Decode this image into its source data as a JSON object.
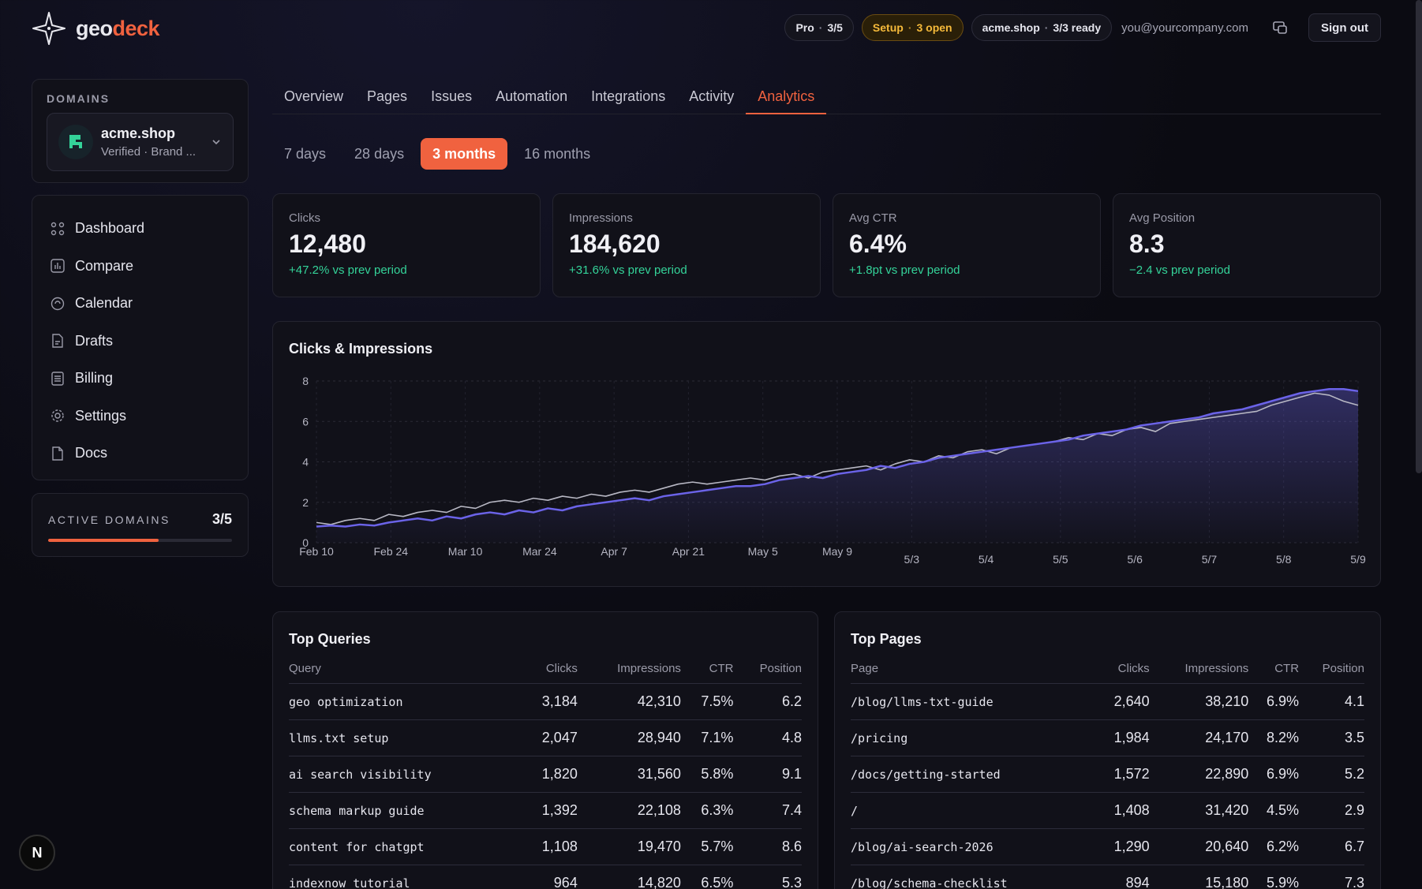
{
  "header": {
    "logo_a": "geo",
    "logo_b": "deck",
    "plan_name": "Pro",
    "plan_usage": "3/5",
    "setup_label": "Setup",
    "setup_status": "3 open",
    "domain_label": "acme.shop",
    "domain_status": "3/3 ready",
    "email": "you@yourcompany.com",
    "signout": "Sign out"
  },
  "sidebar": {
    "domains_label": "DOMAINS",
    "domain_name": "acme.shop",
    "domain_sub": "Verified · Brand ...",
    "nav": [
      {
        "label": "Dashboard",
        "icon": "dashboard-icon"
      },
      {
        "label": "Compare",
        "icon": "compare-icon"
      },
      {
        "label": "Calendar",
        "icon": "calendar-icon"
      },
      {
        "label": "Drafts",
        "icon": "drafts-icon"
      },
      {
        "label": "Billing",
        "icon": "billing-icon"
      },
      {
        "label": "Settings",
        "icon": "settings-icon"
      },
      {
        "label": "Docs",
        "icon": "docs-icon"
      }
    ],
    "active_domains_label": "ACTIVE DOMAINS",
    "active_domains_count": "3/5",
    "active_domains_fraction": 0.6
  },
  "tabs": [
    "Overview",
    "Pages",
    "Issues",
    "Automation",
    "Integrations",
    "Activity",
    "Analytics"
  ],
  "active_tab": "Analytics",
  "ranges": [
    "7 days",
    "28 days",
    "3 months",
    "16 months"
  ],
  "active_range": "3 months",
  "stats": [
    {
      "label": "Clicks",
      "value": "12,480",
      "delta": "+47.2% vs prev period"
    },
    {
      "label": "Impressions",
      "value": "184,620",
      "delta": "+31.6% vs prev period"
    },
    {
      "label": "Avg CTR",
      "value": "6.4%",
      "delta": "+1.8pt vs prev period"
    },
    {
      "label": "Avg Position",
      "value": "8.3",
      "delta": "−2.4 vs prev period"
    }
  ],
  "chart_data": {
    "type": "area",
    "title": "Clicks & Impressions",
    "ylim": [
      0,
      8
    ],
    "yticks": [
      0,
      2,
      4,
      6,
      8
    ],
    "grid": true,
    "x_labels_upper": [
      "Feb 10",
      "Feb 24",
      "Mar 10",
      "Mar 24",
      "Apr 7",
      "Apr 21",
      "May 5",
      "May 9"
    ],
    "x_labels_lower": [
      "5/3",
      "5/4",
      "5/5",
      "5/6",
      "5/7",
      "5/8",
      "5/9"
    ],
    "series": [
      {
        "color": "#6b63e8",
        "values": [
          0.8,
          0.85,
          0.8,
          0.9,
          0.85,
          1.0,
          1.1,
          1.2,
          1.1,
          1.3,
          1.2,
          1.4,
          1.5,
          1.4,
          1.6,
          1.5,
          1.7,
          1.6,
          1.8,
          1.9,
          2.0,
          2.1,
          2.2,
          2.1,
          2.3,
          2.4,
          2.5,
          2.6,
          2.7,
          2.8,
          2.8,
          2.9,
          3.1,
          3.2,
          3.3,
          3.2,
          3.4,
          3.5,
          3.6,
          3.8,
          3.7,
          3.9,
          4.0,
          4.2,
          4.3,
          4.4,
          4.5,
          4.6,
          4.7,
          4.8,
          4.9,
          5.0,
          5.1,
          5.3,
          5.4,
          5.5,
          5.6,
          5.8,
          5.9,
          6.0,
          6.1,
          6.2,
          6.4,
          6.5,
          6.6,
          6.8,
          7.0,
          7.2,
          7.4,
          7.5,
          7.6,
          7.6,
          7.5
        ]
      },
      {
        "color": "#b8b8c4",
        "values": [
          1.0,
          0.9,
          1.1,
          1.2,
          1.1,
          1.4,
          1.3,
          1.5,
          1.6,
          1.5,
          1.8,
          1.7,
          2.0,
          2.1,
          2.0,
          2.2,
          2.1,
          2.3,
          2.2,
          2.4,
          2.3,
          2.5,
          2.6,
          2.5,
          2.7,
          2.9,
          3.0,
          2.9,
          3.0,
          3.1,
          3.2,
          3.1,
          3.3,
          3.4,
          3.2,
          3.5,
          3.6,
          3.7,
          3.8,
          3.6,
          3.9,
          4.1,
          4.0,
          4.3,
          4.2,
          4.5,
          4.6,
          4.4,
          4.7,
          4.8,
          4.9,
          5.0,
          5.2,
          5.1,
          5.4,
          5.3,
          5.6,
          5.7,
          5.5,
          5.9,
          6.0,
          6.1,
          6.2,
          6.3,
          6.4,
          6.5,
          6.8,
          7.0,
          7.2,
          7.4,
          7.3,
          7.0,
          6.8
        ]
      }
    ]
  },
  "top_queries": {
    "title": "Top Queries",
    "columns": [
      "Query",
      "Clicks",
      "Impressions",
      "CTR",
      "Position"
    ],
    "rows": [
      [
        "geo optimization",
        "3,184",
        "42,310",
        "7.5%",
        "6.2"
      ],
      [
        "llms.txt setup",
        "2,047",
        "28,940",
        "7.1%",
        "4.8"
      ],
      [
        "ai search visibility",
        "1,820",
        "31,560",
        "5.8%",
        "9.1"
      ],
      [
        "schema markup guide",
        "1,392",
        "22,108",
        "6.3%",
        "7.4"
      ],
      [
        "content for chatgpt",
        "1,108",
        "19,470",
        "5.7%",
        "8.6"
      ],
      [
        "indexnow tutorial",
        "964",
        "14,820",
        "6.5%",
        "5.3"
      ]
    ]
  },
  "top_pages": {
    "title": "Top Pages",
    "columns": [
      "Page",
      "Clicks",
      "Impressions",
      "CTR",
      "Position"
    ],
    "rows": [
      [
        "/blog/llms-txt-guide",
        "2,640",
        "38,210",
        "6.9%",
        "4.1"
      ],
      [
        "/pricing",
        "1,984",
        "24,170",
        "8.2%",
        "3.5"
      ],
      [
        "/docs/getting-started",
        "1,572",
        "22,890",
        "6.9%",
        "5.2"
      ],
      [
        "/",
        "1,408",
        "31,420",
        "4.5%",
        "2.9"
      ],
      [
        "/blog/ai-search-2026",
        "1,290",
        "20,640",
        "6.2%",
        "6.7"
      ],
      [
        "/blog/schema-checklist",
        "894",
        "15,180",
        "5.9%",
        "7.3"
      ]
    ]
  },
  "badge_letter": "N",
  "colors": {
    "accent": "#f0623f",
    "positive": "#34d399",
    "series_primary": "#6b63e8"
  }
}
